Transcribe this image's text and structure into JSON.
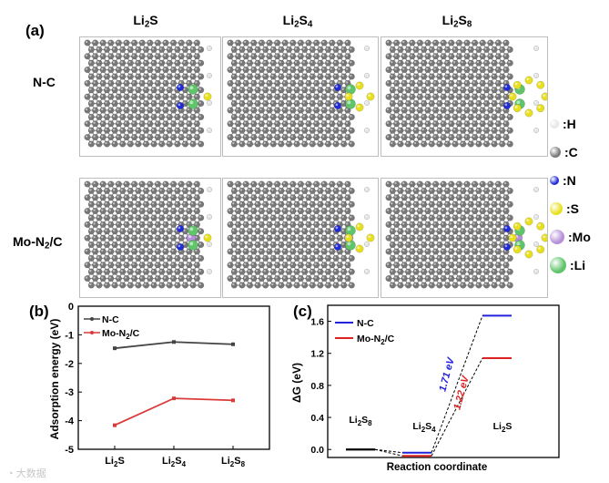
{
  "panel_a": {
    "label": "(a)",
    "columns": [
      {
        "base": "Li",
        "sub1": "2",
        "mid": "S",
        "sub2": ""
      },
      {
        "base": "Li",
        "sub1": "2",
        "mid": "S",
        "sub2": "4"
      },
      {
        "base": "Li",
        "sub1": "2",
        "mid": "S",
        "sub2": "8"
      }
    ],
    "rows": [
      {
        "base": "N-C",
        "sub": "",
        "tail": ""
      },
      {
        "base": "Mo-N",
        "sub": "2",
        "tail": "/C"
      }
    ],
    "legend": [
      {
        "symbol": ":H",
        "color": "#e6e6e6"
      },
      {
        "symbol": ":C",
        "color": "#7a7a7a"
      },
      {
        "symbol": ":N",
        "color": "#1f2bd6"
      },
      {
        "symbol": ":S",
        "color": "#e8e01e"
      },
      {
        "symbol": ":Mo",
        "color": "#b58fd8"
      },
      {
        "symbol": ":Li",
        "color": "#5fc46a"
      }
    ]
  },
  "panel_b": {
    "label": "(b)",
    "legend": [
      {
        "name": "N-C",
        "color": "#444444"
      },
      {
        "name_base": "Mo-N",
        "name_sub": "2",
        "name_tail": "/C",
        "color": "#d93b3b"
      }
    ],
    "ylabel": "Adsorption energy (eV)",
    "yticks": [
      "0",
      "-1",
      "-2",
      "-3",
      "-4",
      "-5"
    ],
    "xticks": [
      {
        "base": "Li",
        "sub1": "2",
        "mid": "S",
        "sub2": ""
      },
      {
        "base": "Li",
        "sub1": "2",
        "mid": "S",
        "sub2": "4"
      },
      {
        "base": "Li",
        "sub1": "2",
        "mid": "S",
        "sub2": "8"
      }
    ]
  },
  "panel_c": {
    "label": "(c)",
    "legend": [
      {
        "name": "N-C",
        "color": "#2222dd"
      },
      {
        "name_base": "Mo-N",
        "name_sub": "2",
        "name_tail": "/C",
        "color": "#dd2222"
      }
    ],
    "ylabel": "ΔG (eV)",
    "xlabel": "Reaction coordinate",
    "yticks": [
      "1.6",
      "1.2",
      "0.8",
      "0.4",
      "0.0"
    ],
    "state_labels": [
      {
        "base": "Li",
        "sub1": "2",
        "mid": "S",
        "sub2": "8"
      },
      {
        "base": "Li",
        "sub1": "2",
        "mid": "S",
        "sub2": "4"
      },
      {
        "base": "Li",
        "sub1": "2",
        "mid": "S",
        "sub2": ""
      }
    ],
    "barrier_nc": "1.71 eV",
    "barrier_mo": "1.22 eV"
  },
  "chart_data": [
    {
      "type": "line",
      "ylabel": "Adsorption energy (eV)",
      "ylim": [
        -5,
        0
      ],
      "categories": [
        "Li2S",
        "Li2S4",
        "Li2S8"
      ],
      "series": [
        {
          "name": "N-C",
          "values": [
            -1.47,
            -1.25,
            -1.33
          ],
          "color": "#444444"
        },
        {
          "name": "Mo-N2/C",
          "values": [
            -4.16,
            -3.22,
            -3.29
          ],
          "color": "#d93b3b"
        }
      ]
    },
    {
      "type": "line",
      "xlabel": "Reaction coordinate",
      "ylabel": "ΔG (eV)",
      "ylim": [
        -0.1,
        1.8
      ],
      "categories": [
        "Li2S8",
        "Li2S4",
        "Li2S"
      ],
      "series": [
        {
          "name": "N-C",
          "values": [
            0.0,
            -0.04,
            1.67
          ],
          "color": "#2222dd"
        },
        {
          "name": "Mo-N2/C",
          "values": [
            0.0,
            -0.08,
            1.14
          ],
          "color": "#dd2222"
        }
      ],
      "annotations": [
        "1.71 eV",
        "1.22 eV"
      ]
    }
  ],
  "watermark": {
    "text": "大数据"
  }
}
